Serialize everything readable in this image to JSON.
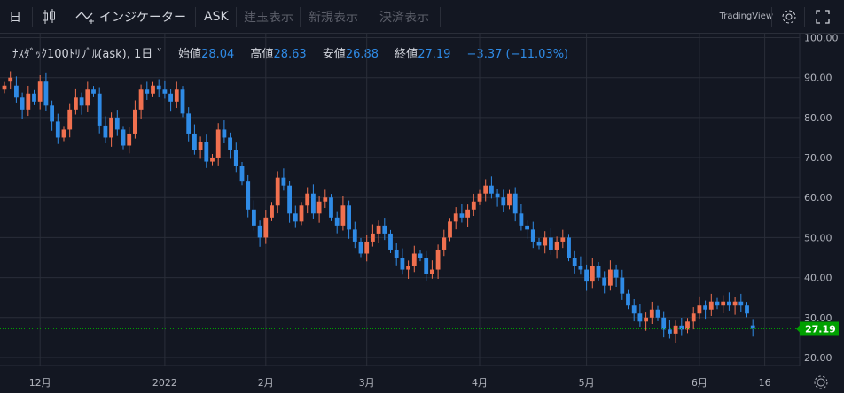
{
  "toolbar": {
    "interval": "日",
    "indicators_label": "インジケーター",
    "ask_label": "ASK",
    "open_position_label": "建玉表示",
    "new_order_label": "新規表示",
    "settlement_label": "決済表示",
    "brand": "TradingView",
    "icons": [
      "candle-icon",
      "indicator-icon",
      "gear-icon",
      "fullscreen-icon"
    ]
  },
  "legend": {
    "symbol": "ﾅｽﾀﾞｯｸ100ﾄﾘﾌﾟﾙ(ask), 1日",
    "open_label": "始値",
    "open_value": "28.04",
    "high_label": "高値",
    "high_value": "28.63",
    "low_label": "安値",
    "low_value": "26.88",
    "close_label": "終値",
    "close_value": "27.19",
    "change": "−3.37 (−11.03%)"
  },
  "colors": {
    "background": "#131722",
    "up": "#f0704f",
    "down": "#2f8be6",
    "last_price": "#00a000",
    "grid": "#2a2e39",
    "text": "#b2b5be"
  },
  "chart_data": {
    "type": "candlestick",
    "ylim": [
      18,
      101
    ],
    "y_ticks": [
      "100.00",
      "90.00",
      "80.00",
      "70.00",
      "60.00",
      "50.00",
      "40.00",
      "30.00",
      "20.00"
    ],
    "y_tick_values": [
      100,
      90,
      80,
      70,
      60,
      50,
      40,
      30,
      20
    ],
    "x_labels": [
      "12月",
      "2022",
      "2月",
      "3月",
      "4月",
      "5月",
      "6月",
      "16"
    ],
    "x_label_index": [
      6,
      27,
      44,
      61,
      80,
      98,
      117,
      128
    ],
    "last_price": 27.19,
    "last_price_label": "27.19",
    "closes": [
      88,
      90,
      85,
      82,
      86,
      84,
      89,
      83,
      79,
      75,
      77,
      82,
      85,
      83,
      87,
      86,
      78,
      75,
      80,
      77,
      73,
      76,
      82,
      87,
      86,
      88,
      87,
      86,
      84,
      87,
      81,
      76,
      72,
      74,
      69,
      70,
      77,
      75,
      72,
      68,
      64,
      57,
      53,
      50,
      55,
      58,
      65,
      63,
      56,
      54,
      58,
      61,
      56,
      59,
      60,
      55,
      53,
      58,
      52,
      49,
      46,
      49,
      51,
      53,
      51,
      47,
      45,
      42,
      43,
      46,
      45,
      41,
      42,
      47,
      50,
      54,
      56,
      55,
      57,
      59,
      61,
      63,
      61,
      60,
      58,
      61,
      56,
      53,
      52,
      49,
      48,
      50,
      47,
      49,
      50,
      45,
      43,
      42,
      39,
      43,
      40,
      38,
      42,
      40,
      36,
      33,
      31,
      29,
      30,
      32,
      30,
      27,
      26,
      28,
      27,
      29,
      31,
      33,
      32,
      34,
      33,
      34,
      33,
      34,
      33,
      31,
      27.19
    ],
    "opens": [
      87,
      89,
      88,
      85,
      82,
      86,
      84,
      89,
      83,
      79,
      75,
      77,
      82,
      85,
      83,
      87,
      86,
      78,
      75,
      80,
      77,
      73,
      76,
      82,
      87,
      86,
      88,
      87,
      86,
      84,
      87,
      81,
      76,
      72,
      74,
      69,
      70,
      77,
      75,
      72,
      68,
      64,
      57,
      53,
      50,
      55,
      58,
      65,
      63,
      56,
      54,
      58,
      61,
      56,
      59,
      60,
      55,
      53,
      58,
      52,
      49,
      46,
      49,
      51,
      53,
      51,
      47,
      45,
      42,
      43,
      46,
      45,
      41,
      42,
      47,
      50,
      54,
      56,
      55,
      57,
      59,
      61,
      63,
      61,
      60,
      58,
      61,
      56,
      53,
      52,
      49,
      48,
      50,
      47,
      49,
      50,
      45,
      43,
      42,
      39,
      43,
      40,
      38,
      42,
      40,
      36,
      33,
      31,
      29,
      30,
      32,
      30,
      27,
      26,
      28,
      27,
      29,
      31,
      33,
      32,
      34,
      33,
      34,
      33,
      34,
      33,
      28.04
    ]
  }
}
